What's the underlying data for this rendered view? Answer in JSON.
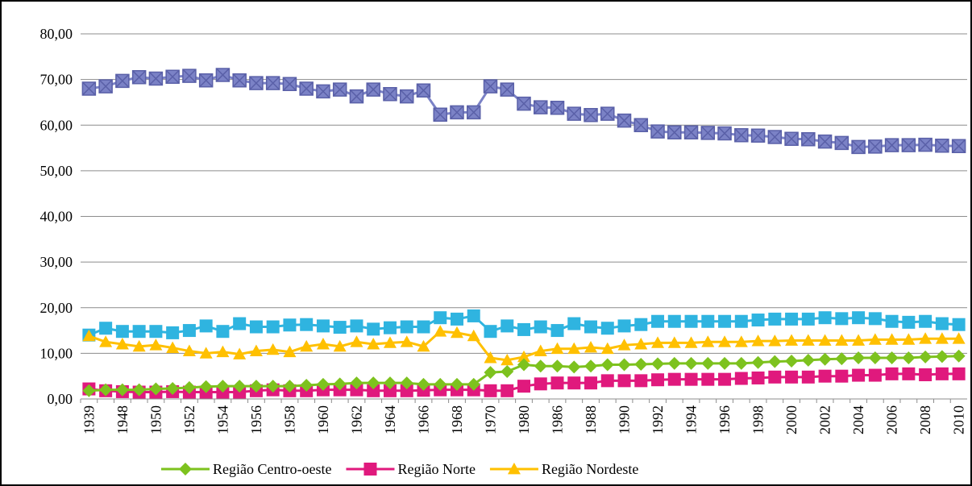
{
  "chart_data": {
    "type": "line",
    "categories": [
      "1939",
      null,
      "1948",
      null,
      "1950",
      null,
      "1952",
      null,
      "1954",
      null,
      "1956",
      null,
      "1958",
      null,
      "1960",
      null,
      "1962",
      null,
      "1964",
      null,
      "1966",
      null,
      "1968",
      null,
      "1970",
      null,
      "1980",
      null,
      "1986",
      null,
      "1988",
      null,
      "1990",
      null,
      "1992",
      null,
      "1994",
      null,
      "1996",
      null,
      "1998",
      null,
      "2000",
      null,
      "2002",
      null,
      "2004",
      null,
      "2006",
      null,
      "2008",
      null,
      "2010"
    ],
    "series": [
      {
        "name": "Região Centro-oeste",
        "color": "#7dc21e",
        "marker": "diamond",
        "values": [
          1.8,
          2,
          2,
          2,
          2.2,
          2.3,
          2.5,
          2.7,
          2.8,
          2.8,
          2.8,
          2.8,
          2.8,
          3,
          3.2,
          3.3,
          3.5,
          3.5,
          3.5,
          3.5,
          3.2,
          3.2,
          3.2,
          3.2,
          5.8,
          6,
          7.5,
          7.2,
          7.2,
          7,
          7.2,
          7.5,
          7.5,
          7.6,
          7.7,
          7.8,
          7.8,
          7.8,
          7.8,
          7.8,
          8,
          8.2,
          8.3,
          8.5,
          8.7,
          8.8,
          9,
          9,
          9,
          9,
          9.2,
          9.3,
          9.4
        ]
      },
      {
        "name": "Região Norte",
        "color": "#e0197d",
        "marker": "square",
        "values": [
          2.2,
          1.8,
          1.6,
          1.5,
          1.5,
          1.6,
          1.5,
          1.5,
          1.5,
          1.5,
          1.8,
          2,
          1.8,
          1.8,
          2,
          2,
          2,
          1.8,
          1.8,
          1.8,
          1.9,
          2,
          2,
          2,
          1.8,
          1.8,
          2.8,
          3.3,
          3.5,
          3.5,
          3.5,
          4,
          4,
          4,
          4.2,
          4.3,
          4.3,
          4.3,
          4.3,
          4.5,
          4.6,
          4.8,
          4.8,
          4.8,
          5,
          5,
          5.2,
          5.2,
          5.5,
          5.5,
          5.3,
          5.5,
          5.5
        ]
      },
      {
        "name": "Região Nordeste",
        "color": "#ffc000",
        "marker": "triangle",
        "values": [
          13.8,
          12.5,
          12,
          11.5,
          11.8,
          11.2,
          10.5,
          10,
          10.3,
          9.8,
          10.5,
          10.8,
          10.3,
          11.5,
          12,
          11.5,
          12.5,
          12,
          12.3,
          12.5,
          11.5,
          14.8,
          14.5,
          13.8,
          9,
          8.5,
          9.2,
          10.5,
          11,
          11,
          11.3,
          11,
          11.8,
          12,
          12.3,
          12.3,
          12.3,
          12.5,
          12.5,
          12.5,
          12.7,
          12.7,
          12.8,
          12.8,
          12.8,
          12.8,
          12.8,
          13,
          13,
          13,
          13.2,
          13.2,
          13.2
        ]
      },
      {
        "color": "#2fb4e0",
        "marker": "square",
        "values": [
          14,
          15.5,
          14.8,
          14.8,
          14.8,
          14.5,
          15,
          16,
          14.8,
          16.5,
          15.8,
          15.8,
          16.2,
          16.3,
          16,
          15.7,
          16,
          15.3,
          15.6,
          15.8,
          15.8,
          17.8,
          17.5,
          18.2,
          14.8,
          16,
          15.2,
          15.8,
          15,
          16.5,
          15.8,
          15.5,
          16,
          16.3,
          17,
          17,
          17,
          17,
          17,
          17,
          17.3,
          17.5,
          17.5,
          17.5,
          17.8,
          17.6,
          17.8,
          17.6,
          17,
          16.8,
          17,
          16.5,
          16.3
        ]
      },
      {
        "color": "#7b82c6",
        "marker": "cross",
        "values": [
          68,
          68.5,
          69.7,
          70.5,
          70.2,
          70.6,
          70.8,
          69.8,
          71,
          69.8,
          69.2,
          69.2,
          69,
          68,
          67.4,
          67.8,
          66.3,
          67.8,
          66.8,
          66.3,
          67.6,
          62.3,
          62.8,
          62.8,
          68.5,
          67.8,
          64.7,
          63.9,
          63.8,
          62.5,
          62.2,
          62.5,
          61,
          60,
          58.6,
          58.4,
          58.4,
          58.3,
          58.2,
          57.8,
          57.7,
          57.4,
          57,
          56.9,
          56.4,
          56.1,
          55.2,
          55.3,
          55.6,
          55.6,
          55.7,
          55.5,
          55.4
        ]
      }
    ],
    "ylim": [
      0,
      80
    ],
    "yticks": [
      {
        "value": 0,
        "label": "0,00"
      },
      {
        "value": 10,
        "label": "10,00"
      },
      {
        "value": 20,
        "label": "20,00"
      },
      {
        "value": 30,
        "label": "30,00"
      },
      {
        "value": 40,
        "label": "40,00"
      },
      {
        "value": 50,
        "label": "50,00"
      },
      {
        "value": 60,
        "label": "60,00"
      },
      {
        "value": 70,
        "label": "70,00"
      },
      {
        "value": 80,
        "label": "80,00"
      }
    ],
    "grid": true,
    "legend": "bottom"
  }
}
